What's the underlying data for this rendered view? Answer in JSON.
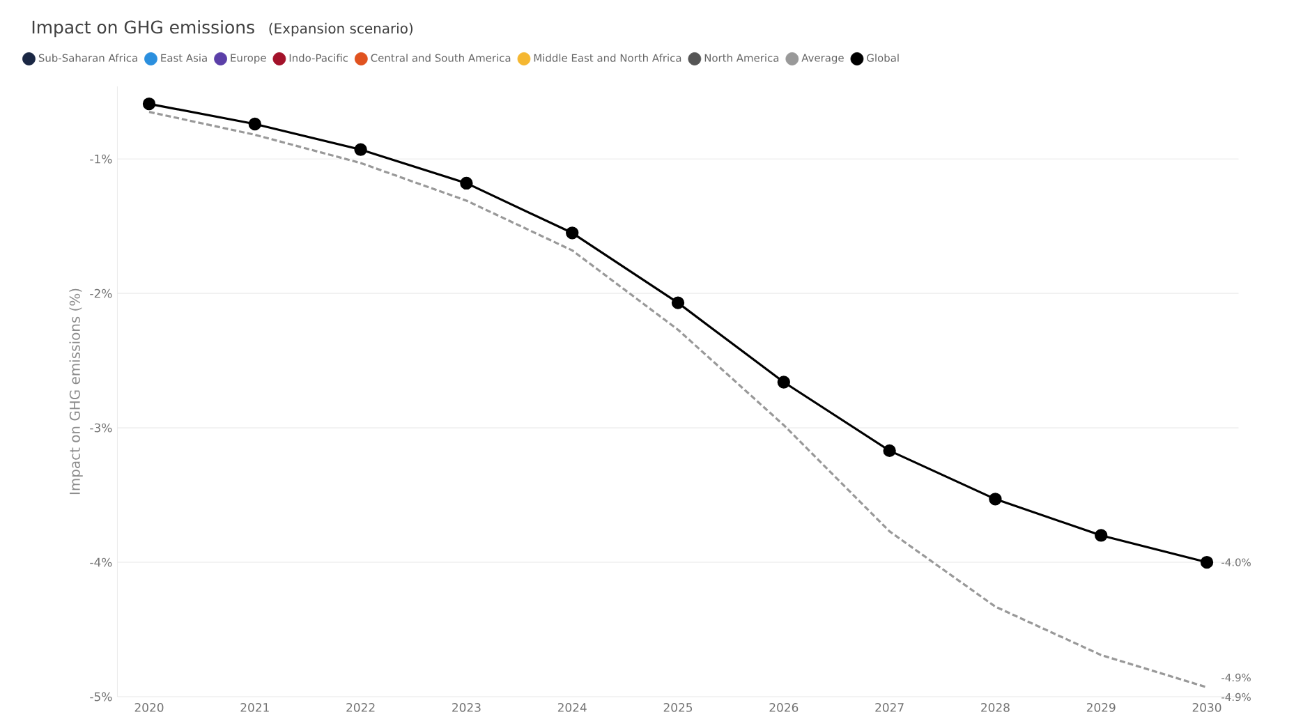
{
  "chart_data": {
    "type": "line",
    "title": "Impact on GHG emissions",
    "subtitle": "(Expansion scenario)",
    "ylabel": "Impact on GHG emissions (%)",
    "categories": [
      "2020",
      "2021",
      "2022",
      "2023",
      "2024",
      "2025",
      "2026",
      "2027",
      "2028",
      "2029",
      "2030"
    ],
    "ylim": [
      -5,
      -0.46
    ],
    "yticks": [
      {
        "value": -1,
        "label": "-1%"
      },
      {
        "value": -2,
        "label": "-2%"
      },
      {
        "value": -3,
        "label": "-3%"
      },
      {
        "value": -4,
        "label": "-4%"
      },
      {
        "value": -5,
        "label": "-5%"
      }
    ],
    "grid": "y",
    "legend": "top left",
    "series": [
      {
        "name": "Sub-Saharan Africa",
        "color": "#1a2744",
        "values": [
          null,
          null,
          null,
          null,
          null,
          null,
          null,
          null,
          null,
          null,
          null
        ]
      },
      {
        "name": "East Asia",
        "color": "#2b8fde",
        "values": [
          null,
          null,
          null,
          null,
          null,
          null,
          null,
          null,
          null,
          null,
          null
        ]
      },
      {
        "name": "Europe",
        "color": "#5b3fa8",
        "values": [
          null,
          null,
          null,
          null,
          null,
          null,
          null,
          null,
          null,
          null,
          null
        ]
      },
      {
        "name": "Indo-Pacific",
        "color": "#a3122a",
        "values": [
          null,
          null,
          null,
          null,
          null,
          null,
          null,
          null,
          null,
          null,
          null
        ]
      },
      {
        "name": "Central and South America",
        "color": "#e0521f",
        "values": [
          null,
          null,
          null,
          null,
          null,
          null,
          null,
          null,
          null,
          null,
          null
        ]
      },
      {
        "name": "Middle East and North Africa",
        "color": "#f5b731",
        "values": [
          null,
          null,
          null,
          null,
          null,
          null,
          null,
          null,
          null,
          null,
          null
        ]
      },
      {
        "name": "North America",
        "color": "#555555",
        "values": [
          null,
          null,
          null,
          null,
          null,
          null,
          null,
          null,
          null,
          null,
          null
        ]
      },
      {
        "name": "Average",
        "color": "#999999",
        "line_style": "dashed",
        "marker": "none",
        "values": [
          -0.65,
          -0.82,
          -1.03,
          -1.31,
          -1.68,
          -2.27,
          -2.98,
          -3.77,
          -4.33,
          -4.69,
          -4.93
        ]
      },
      {
        "name": "Global",
        "color": "#000000",
        "line_style": "solid",
        "marker": "circle",
        "values": [
          -0.59,
          -0.74,
          -0.93,
          -1.18,
          -1.55,
          -2.07,
          -2.66,
          -3.17,
          -3.53,
          -3.8,
          -4.0
        ]
      }
    ],
    "annotations": [
      {
        "text": "-4.0%",
        "x": "2030",
        "y": -4.0
      },
      {
        "text": "-4.9%",
        "x": "2030",
        "y": -4.93
      },
      {
        "text": "-4.9%",
        "x": "2030",
        "y": -4.93
      }
    ]
  }
}
